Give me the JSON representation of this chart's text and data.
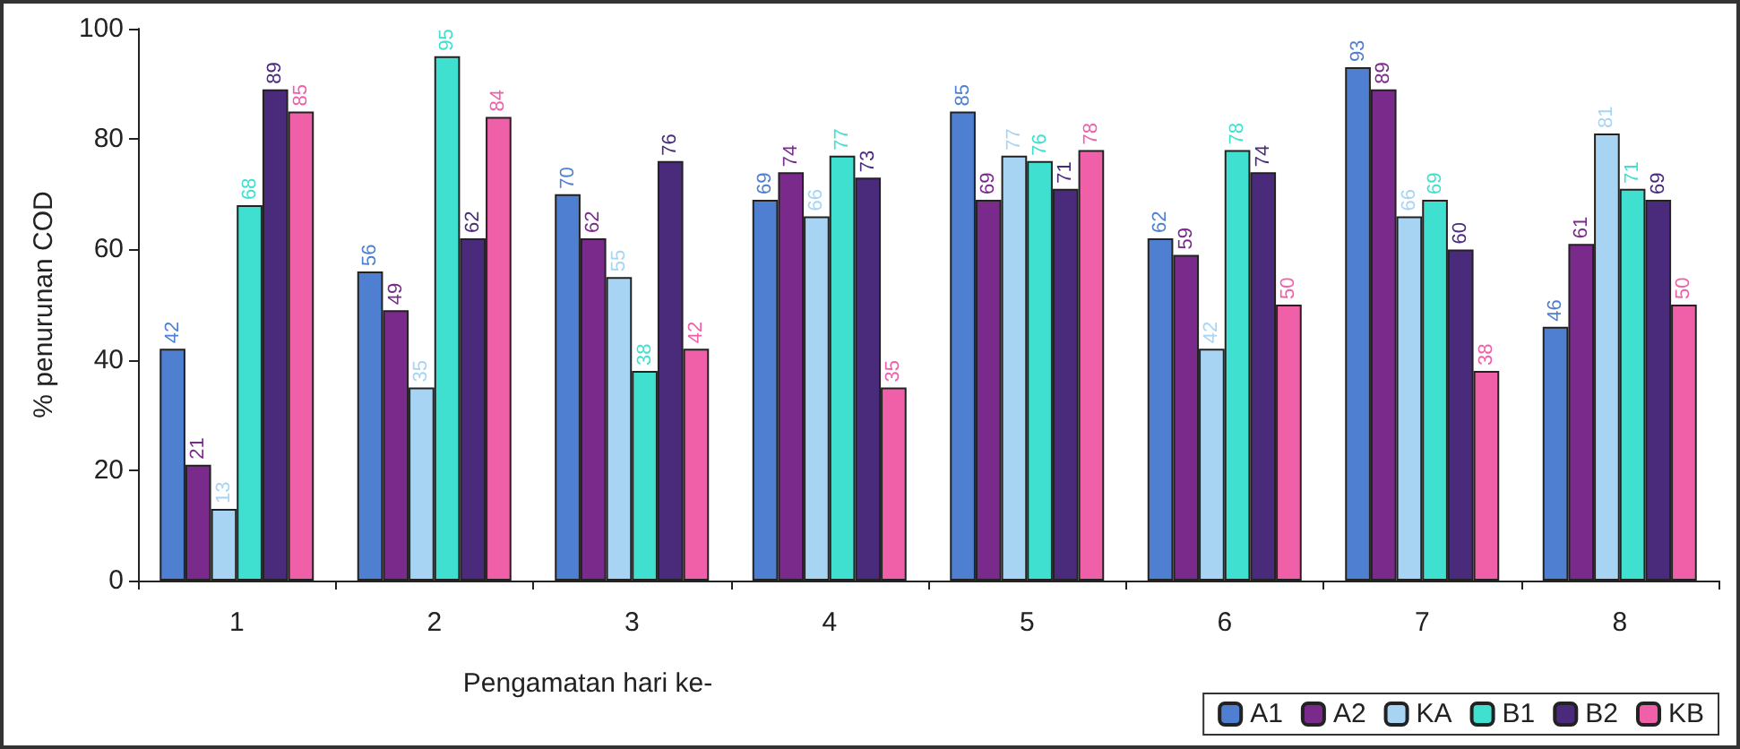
{
  "chart_data": {
    "type": "bar",
    "xlabel": "Pengamatan hari ke-",
    "ylabel": "% penurunan COD",
    "categories": [
      "1",
      "2",
      "3",
      "4",
      "5",
      "6",
      "7",
      "8"
    ],
    "series": [
      {
        "name": "A1",
        "color": "#4f7fd0",
        "values": [
          42,
          56,
          70,
          69,
          85,
          62,
          93,
          46
        ]
      },
      {
        "name": "A2",
        "color": "#7a2a8a",
        "values": [
          21,
          49,
          62,
          74,
          69,
          59,
          89,
          61
        ]
      },
      {
        "name": "KA",
        "color": "#a8d4f4",
        "values": [
          13,
          35,
          55,
          66,
          77,
          42,
          66,
          81
        ]
      },
      {
        "name": "B1",
        "color": "#40e0d0",
        "values": [
          68,
          95,
          38,
          77,
          76,
          78,
          69,
          71
        ]
      },
      {
        "name": "B2",
        "color": "#4a2a7a",
        "values": [
          89,
          62,
          76,
          73,
          71,
          74,
          60,
          69
        ]
      },
      {
        "name": "KB",
        "color": "#f060a8",
        "values": [
          85,
          84,
          42,
          35,
          78,
          50,
          38,
          50
        ]
      }
    ],
    "ylim": [
      0,
      100
    ],
    "yticks": [
      0,
      20,
      40,
      60,
      80,
      100
    ],
    "grid": false,
    "legend": "bottom right",
    "data_labels": true
  }
}
